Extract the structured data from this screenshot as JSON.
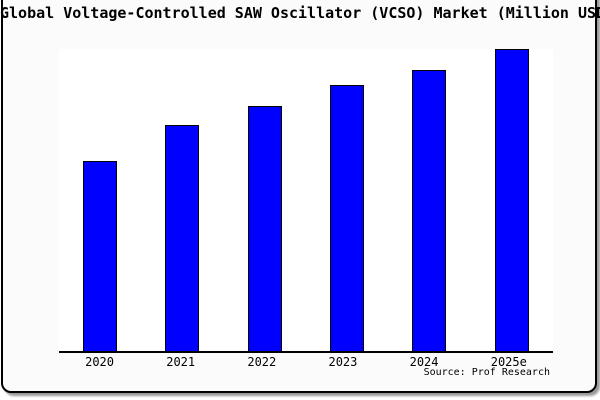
{
  "title": "Global Voltage-Controlled SAW Oscillator (VCSO) Market (Million USD)",
  "source_note": "Source: Prof Research",
  "colors": {
    "bar_fill": "#0000ff",
    "bar_border": "#000000",
    "axis": "#000000",
    "card_background": "#fbfbfb",
    "plot_background": "#ffffff",
    "shadow": "#999999"
  },
  "chart_data": {
    "type": "bar",
    "title": "Global Voltage-Controlled SAW Oscillator (VCSO) Market (Million USD)",
    "categories": [
      "2020",
      "2021",
      "2022",
      "2023",
      "2024",
      "2025e"
    ],
    "values": [
      63,
      75,
      81,
      88,
      93,
      100
    ],
    "value_basis": "relative bar height as percent of tallest bar; no y-axis or value labels are shown in the figure",
    "xlabel": "",
    "ylabel": "",
    "ylim": [
      0,
      100
    ],
    "grid": false,
    "legend": false,
    "y_axis_visible": false,
    "x_axis_visible": true,
    "annotations": [
      "Source: Prof Research"
    ]
  }
}
